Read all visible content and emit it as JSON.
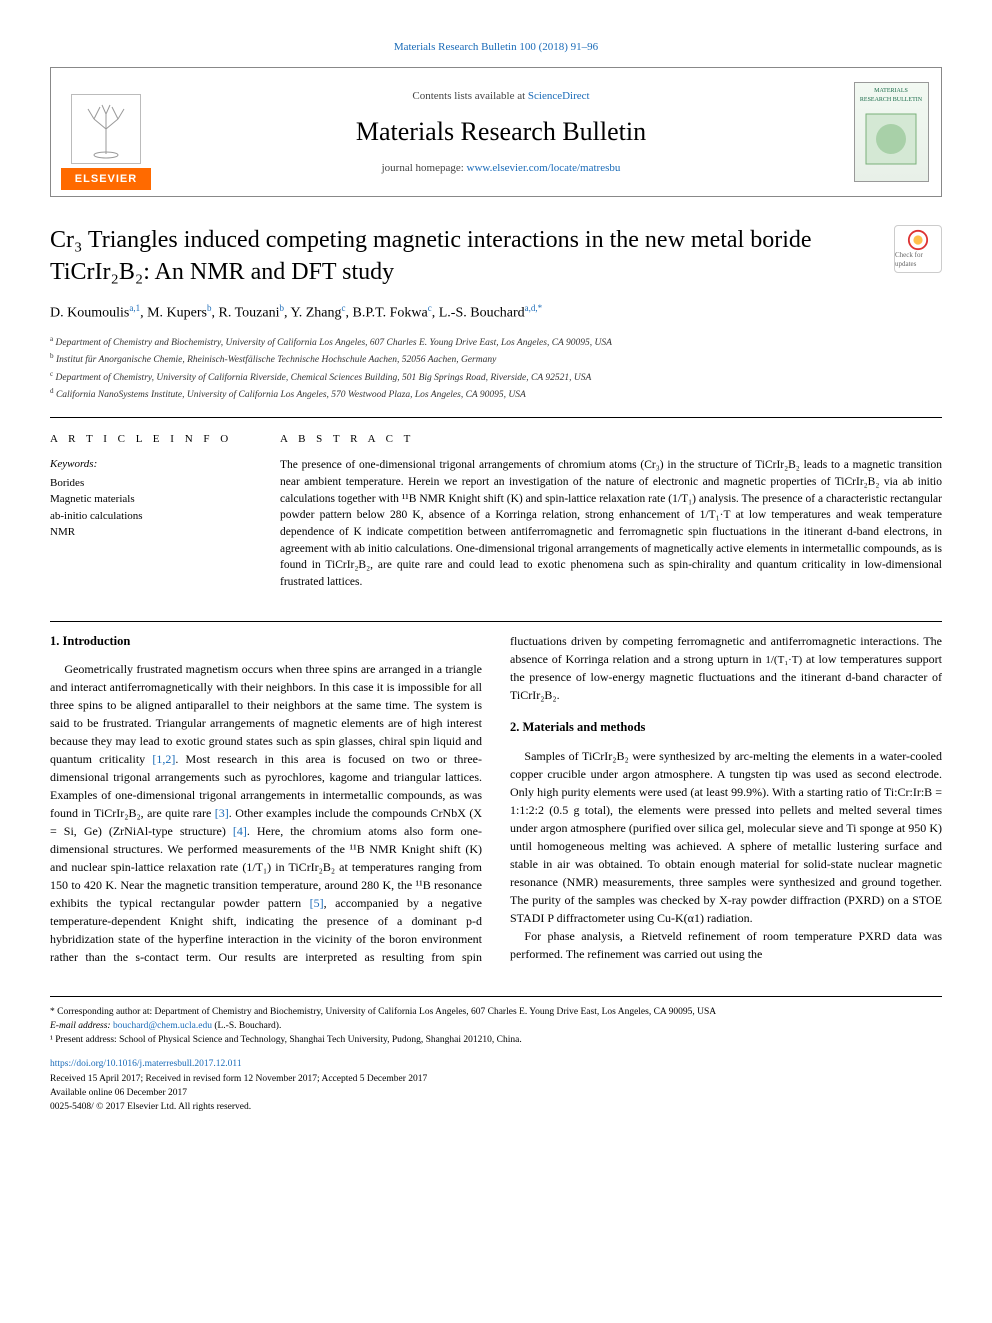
{
  "citation": "Materials Research Bulletin 100 (2018) 91–96",
  "masthead": {
    "contents_prefix": "Contents lists available at ",
    "contents_link": "ScienceDirect",
    "journal": "Materials Research Bulletin",
    "homepage_prefix": "journal homepage: ",
    "homepage_link": "www.elsevier.com/locate/matresbu",
    "publisher_badge": "ELSEVIER",
    "cover_text": "MATERIALS RESEARCH BULLETIN"
  },
  "crossmark": "Check for updates",
  "title": "Cr₃ Triangles induced competing magnetic interactions in the new metal boride TiCrIr₂B₂: An NMR and DFT study",
  "authors_html": "D. Koumoulis<sup>a,1</sup>, M. Kupers<sup>b</sup>, R. Touzani<sup>b</sup>, Y. Zhang<sup>c</sup>, B.P.T. Fokwa<sup>c</sup>, L.-S. Bouchard<sup>a,d,*</sup>",
  "affiliations": [
    "a Department of Chemistry and Biochemistry, University of California Los Angeles, 607 Charles E. Young Drive East, Los Angeles, CA 90095, USA",
    "b Institut für Anorganische Chemie, Rheinisch-Westfälische Technische Hochschule Aachen, 52056 Aachen, Germany",
    "c Department of Chemistry, University of California Riverside, Chemical Sciences Building, 501 Big Springs Road, Riverside, CA 92521, USA",
    "d California NanoSystems Institute, University of California Los Angeles, 570 Westwood Plaza, Los Angeles, CA 90095, USA"
  ],
  "article_info_label": "A R T I C L E  I N F O",
  "abstract_label": "A B S T R A C T",
  "keywords_label": "Keywords:",
  "keywords": [
    "Borides",
    "Magnetic materials",
    "ab-initio calculations",
    "NMR"
  ],
  "abstract": "The presence of one-dimensional trigonal arrangements of chromium atoms (Cr₃) in the structure of TiCrIr₂B₂ leads to a magnetic transition near ambient temperature. Herein we report an investigation of the nature of electronic and magnetic properties of TiCrIr₂B₂ via ab initio calculations together with ¹¹B NMR Knight shift (K) and spin-lattice relaxation rate (1/T₁) analysis. The presence of a characteristic rectangular powder pattern below 280 K, absence of a Korringa relation, strong enhancement of 1/T₁·T at low temperatures and weak temperature dependence of K indicate competition between antiferromagnetic and ferromagnetic spin fluctuations in the itinerant d-band electrons, in agreement with ab initio calculations. One-dimensional trigonal arrangements of magnetically active elements in intermetallic compounds, as is found in TiCrIr₂B₂, are quite rare and could lead to exotic phenomena such as spin-chirality and quantum criticality in low-dimensional frustrated lattices.",
  "sections": {
    "intro_heading": "1. Introduction",
    "intro_p1": "Geometrically frustrated magnetism occurs when three spins are arranged in a triangle and interact antiferromagnetically with their neighbors. In this case it is impossible for all three spins to be aligned antiparallel to their neighbors at the same time. The system is said to be frustrated. Triangular arrangements of magnetic elements are of high interest because they may lead to exotic ground states such as spin glasses, chiral spin liquid and quantum criticality ",
    "ref12": "[1,2]",
    "intro_p1b": ". Most research in this area is focused on two or three-dimensional trigonal arrangements such as pyrochlores, kagome and triangular lattices. Examples of one-dimensional trigonal arrangements in intermetallic compounds, as was found in TiCrIr₂B₂, are quite rare ",
    "ref3": "[3]",
    "intro_p1c": ". Other examples include the compounds CrNbX (X = Si, Ge) (ZrNiAl-type structure) ",
    "ref4": "[4]",
    "intro_p1d": ". Here, the chromium atoms also form one-dimensional structures. We performed measurements of the ¹¹B NMR Knight shift (K) and nuclear spin-lattice relaxation rate (1/T₁) in TiCrIr₂B₂ at temperatures ranging from 150 to 420 K. Near the magnetic transition temperature, around 280 K, the ¹¹B resonance exhibits the typical rectangular powder pattern ",
    "ref5": "[5]",
    "intro_p1e": ", accompanied by a negative temperature-dependent Knight shift, indicating the presence of a dominant p-d hybridization state of the hyperfine interaction in the vicinity of the boron environment rather than the s-",
    "intro_col2a": "contact term. Our results are interpreted as resulting from spin fluctuations driven by competing ferromagnetic and antiferromagnetic interactions. The absence of Korringa relation and a strong upturn in ",
    "intro_frac": "1/(T₁·T)",
    "intro_col2b": " at low temperatures support the presence of low-energy magnetic fluctuations and the itinerant d-band character of TiCrIr₂B₂.",
    "methods_heading": "2. Materials and methods",
    "methods_p1": "Samples of TiCrIr₂B₂ were synthesized by arc-melting the elements in a water-cooled copper crucible under argon atmosphere. A tungsten tip was used as second electrode. Only high purity elements were used (at least 99.9%). With a starting ratio of Ti:Cr:Ir:B = 1:1:2:2 (0.5 g total), the elements were pressed into pellets and melted several times under argon atmosphere (purified over silica gel, molecular sieve and Ti sponge at 950 K) until homogeneous melting was achieved. A sphere of metallic lustering surface and stable in air was obtained. To obtain enough material for solid-state nuclear magnetic resonance (NMR) measurements, three samples were synthesized and ground together. The purity of the samples was checked by X-ray powder diffraction (PXRD) on a STOE STADI P diffractometer using Cu-K(α1) radiation.",
    "methods_p2": "For phase analysis, a Rietveld refinement of room temperature PXRD data was performed. The refinement was carried out using the"
  },
  "footnotes": {
    "corr": "* Corresponding author at: Department of Chemistry and Biochemistry, University of California Los Angeles, 607 Charles E. Young Drive East, Los Angeles, CA 90095, USA",
    "email_label": "E-mail address: ",
    "email": "bouchard@chem.ucla.edu",
    "email_who": " (L.-S. Bouchard).",
    "present": "¹ Present address: School of Physical Science and Technology, Shanghai Tech University, Pudong, Shanghai 201210, China."
  },
  "doi": {
    "link": "https://doi.org/10.1016/j.materresbull.2017.12.011",
    "received": "Received 15 April 2017; Received in revised form 12 November 2017; Accepted 5 December 2017",
    "available": "Available online 06 December 2017",
    "copyright": "0025-5408/ © 2017 Elsevier Ltd. All rights reserved."
  },
  "colors": {
    "link": "#1a6bb8",
    "elsevier": "#ff6a00"
  }
}
